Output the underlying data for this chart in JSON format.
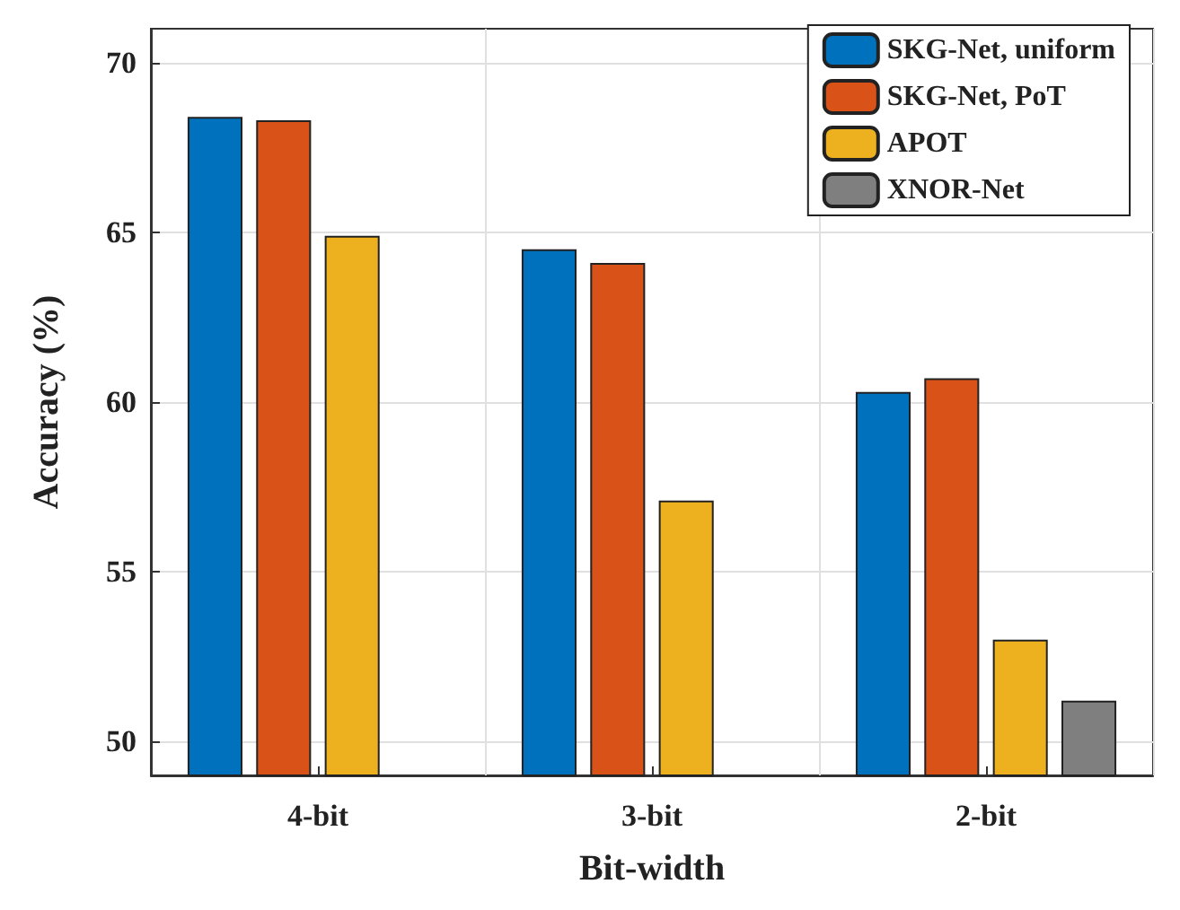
{
  "chart_data": {
    "type": "bar",
    "xlabel": "Bit-width",
    "ylabel": "Accuracy (%)",
    "categories": [
      "4-bit",
      "3-bit",
      "2-bit"
    ],
    "series": [
      {
        "name": "SKG-Net, uniform",
        "color": "#0072bd",
        "values": [
          68.4,
          64.5,
          60.3
        ]
      },
      {
        "name": "SKG-Net, PoT",
        "color": "#d95319",
        "values": [
          68.3,
          64.1,
          60.7
        ]
      },
      {
        "name": "APOT",
        "color": "#edb120",
        "values": [
          64.9,
          57.1,
          53.0
        ]
      },
      {
        "name": "XNOR-Net",
        "color": "#7f7f7f",
        "values": [
          null,
          null,
          51.2
        ]
      }
    ],
    "ylim": [
      49,
      71
    ],
    "yticks": [
      50,
      55,
      60,
      65,
      70
    ],
    "grid": true,
    "legend": "top right"
  }
}
